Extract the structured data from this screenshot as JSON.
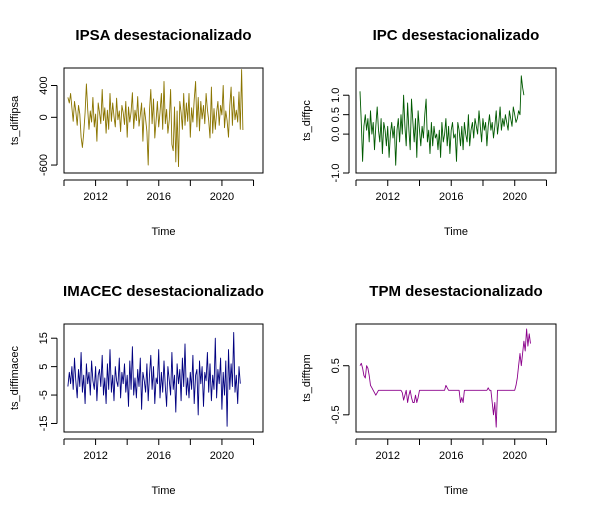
{
  "chart_data": [
    {
      "type": "line",
      "title": "IPSA desestacionalizado",
      "xlabel": "Time",
      "ylabel": "ts_diffipsa",
      "xlim": [
        2010.0,
        2022.6
      ],
      "ylim": [
        -700,
        620
      ],
      "xticks": [
        2012,
        2016,
        2020
      ],
      "yticks": [
        -600,
        0,
        400
      ],
      "color": "#8B7500",
      "grid": false,
      "series": [
        {
          "x_start": 2010.25,
          "x_step": 0.0833,
          "values": [
            250,
            180,
            300,
            120,
            -50,
            200,
            80,
            -100,
            150,
            40,
            -250,
            -380,
            -200,
            60,
            420,
            100,
            -150,
            80,
            -60,
            250,
            -120,
            40,
            -300,
            180,
            60,
            -80,
            350,
            -40,
            120,
            -200,
            90,
            -150,
            300,
            -50,
            180,
            10,
            -120,
            240,
            -30,
            80,
            -180,
            150,
            60,
            -90,
            200,
            -250,
            130,
            -60,
            70,
            310,
            -140,
            90,
            -40,
            260,
            -110,
            30,
            180,
            -300,
            120,
            -20,
            -180,
            -600,
            90,
            350,
            -80,
            230,
            -260,
            -40,
            200,
            -120,
            60,
            300,
            -150,
            450,
            -80,
            100,
            -200,
            -30,
            350,
            -340,
            -420,
            130,
            -560,
            80,
            -620,
            200,
            60,
            -150,
            300,
            -100,
            180,
            -50,
            300,
            -250,
            120,
            -60,
            220,
            450,
            -120,
            250,
            -170,
            200,
            -20,
            150,
            -80,
            300,
            100,
            -40,
            -260,
            380,
            -200,
            110,
            -150,
            60,
            200,
            -100,
            150,
            30,
            400,
            -130,
            80,
            -40,
            -250,
            150,
            380,
            -100,
            260,
            -30,
            90,
            -60,
            320,
            -150,
            600,
            -160
          ]
        }
      ]
    },
    {
      "type": "line",
      "title": "IPC desestacionalizado",
      "xlabel": "Time",
      "ylabel": "ts_diffpc",
      "xlim": [
        2010.0,
        2022.6
      ],
      "ylim": [
        -1.0,
        1.7
      ],
      "xticks": [
        2012,
        2016,
        2020
      ],
      "yticks": [
        -1.0,
        0.0,
        0.5,
        1.0
      ],
      "ytick_labels": [
        "-1.0",
        "0.0",
        "0.5",
        "1.0"
      ],
      "color": "#005A00",
      "grid": false,
      "series": [
        {
          "x_start": 2010.25,
          "x_step": 0.0833,
          "values": [
            1.1,
            0.3,
            -0.7,
            0.2,
            0.5,
            0.1,
            0.4,
            -0.2,
            0.6,
            0.0,
            0.3,
            -0.4,
            0.2,
            0.7,
            0.1,
            -0.2,
            0.4,
            -0.5,
            0.3,
            0.1,
            -0.3,
            0.2,
            -0.6,
            0.0,
            0.3,
            -0.1,
            0.2,
            -0.8,
            0.1,
            0.4,
            -0.2,
            0.5,
            0.0,
            1.0,
            0.2,
            -0.3,
            0.8,
            0.1,
            -0.4,
            0.9,
            0.3,
            -0.2,
            0.4,
            -0.6,
            0.6,
            0.1,
            -0.3,
            0.2,
            -0.1,
            0.5,
            0.9,
            -0.2,
            0.1,
            -0.5,
            0.3,
            -0.3,
            0.2,
            -0.1,
            0.0,
            -0.4,
            0.1,
            -0.6,
            0.3,
            -0.2,
            0.0,
            0.4,
            -0.3,
            0.2,
            -0.5,
            0.1,
            0.3,
            -0.1,
            0.0,
            -0.7,
            0.3,
            0.1,
            -0.3,
            0.2,
            -0.4,
            0.3,
            0.0,
            -0.2,
            0.5,
            -0.3,
            0.1,
            0.3,
            -0.1,
            0.4,
            0.2,
            0.0,
            0.6,
            0.2,
            -0.2,
            0.4,
            0.1,
            0.3,
            -0.3,
            0.2,
            0.5,
            0.1,
            0.3,
            -0.1,
            0.2,
            0.6,
            0.0,
            0.3,
            0.7,
            0.1,
            0.4,
            0.2,
            0.5,
            0.3,
            0.1,
            0.6,
            0.4,
            0.2,
            0.7,
            0.5,
            0.3,
            0.4,
            0.6,
            0.5,
            1.5,
            1.2,
            1.0
          ]
        }
      ]
    },
    {
      "type": "line",
      "title": "IMACEC desestacionalizado",
      "xlabel": "Time",
      "ylabel": "ts_diffimacec",
      "xlim": [
        2010.0,
        2022.6
      ],
      "ylim": [
        -18,
        20
      ],
      "xticks": [
        2012,
        2016,
        2020
      ],
      "yticks": [
        -15,
        -5,
        5,
        15
      ],
      "color": "#000080",
      "grid": false,
      "series": [
        {
          "x_start": 2010.25,
          "x_step": 0.0833,
          "values": [
            -2,
            3,
            -1,
            5,
            -3,
            8,
            0,
            -6,
            4,
            -2,
            10,
            -4,
            2,
            -8,
            6,
            -1,
            3,
            -5,
            7,
            0,
            -3,
            5,
            -7,
            2,
            4,
            -2,
            9,
            -5,
            1,
            -8,
            6,
            -3,
            11,
            -4,
            2,
            -7,
            5,
            0,
            -2,
            8,
            -6,
            3,
            -1,
            6,
            -4,
            2,
            -9,
            7,
            -3,
            12,
            -5,
            1,
            -6,
            4,
            -2,
            8,
            -10,
            3,
            0,
            -4,
            6,
            -7,
            2,
            9,
            -3,
            5,
            -8,
            1,
            -1,
            11,
            -6,
            3,
            -4,
            7,
            -2,
            -9,
            5,
            0,
            -5,
            10,
            -3,
            2,
            -11,
            6,
            -1,
            4,
            -7,
            8,
            -2,
            13,
            -5,
            1,
            -6,
            3,
            -3,
            9,
            -8,
            2,
            4,
            -12,
            7,
            -1,
            5,
            -9,
            3,
            0,
            10,
            -4,
            6,
            -7,
            2,
            -3,
            15,
            -6,
            4,
            -1,
            8,
            -10,
            3,
            -5,
            7,
            -16,
            11,
            -3,
            6,
            -2,
            17,
            -4,
            2,
            -8,
            5,
            -1
          ]
        }
      ]
    },
    {
      "type": "line",
      "title": "TPM desestacionalizado",
      "xlabel": "Time",
      "ylabel": "ts_difftpm",
      "xlim": [
        2010.0,
        2022.6
      ],
      "ylim": [
        -0.85,
        1.35
      ],
      "xticks": [
        2012,
        2016,
        2020
      ],
      "yticks": [
        -0.5,
        0.5
      ],
      "color": "#8B008B",
      "grid": false,
      "series": [
        {
          "x_start": 2010.25,
          "x_step": 0.0833,
          "values": [
            0.5,
            0.55,
            0.45,
            0.3,
            0.25,
            0.5,
            0.45,
            0.3,
            0.1,
            0.05,
            0.0,
            -0.05,
            -0.1,
            -0.05,
            0.0,
            0.0,
            0.0,
            0.0,
            0.0,
            0.0,
            0.0,
            0.0,
            0.0,
            0.0,
            0.0,
            0.0,
            0.0,
            0.0,
            0.0,
            0.0,
            0.0,
            0.0,
            -0.05,
            -0.2,
            -0.1,
            0.0,
            -0.25,
            -0.1,
            0.0,
            -0.15,
            -0.25,
            -0.25,
            -0.1,
            -0.25,
            -0.15,
            0.0,
            0.0,
            0.0,
            0.0,
            0.0,
            0.0,
            0.0,
            0.0,
            0.0,
            0.0,
            0.0,
            0.0,
            0.0,
            0.0,
            0.0,
            0.0,
            0.0,
            0.0,
            0.0,
            0.0,
            0.1,
            0.05,
            0.0,
            0.0,
            0.0,
            0.0,
            0.0,
            0.0,
            0.0,
            0.0,
            0.0,
            -0.25,
            -0.15,
            -0.25,
            0.0,
            0.0,
            0.0,
            0.0,
            0.0,
            0.0,
            0.0,
            0.0,
            0.0,
            0.0,
            0.0,
            0.0,
            0.0,
            0.0,
            0.0,
            0.0,
            0.0,
            0.0,
            0.05,
            0.0,
            0.0,
            -0.25,
            -0.5,
            -0.25,
            -0.75,
            0.0,
            0.0,
            0.0,
            0.0,
            0.0,
            0.0,
            0.0,
            0.0,
            0.0,
            0.0,
            0.0,
            0.0,
            0.0,
            0.0,
            0.1,
            0.25,
            0.5,
            0.75,
            0.5,
            0.75,
            1.0,
            0.8,
            1.25,
            0.9,
            1.15,
            0.95
          ]
        }
      ]
    }
  ]
}
